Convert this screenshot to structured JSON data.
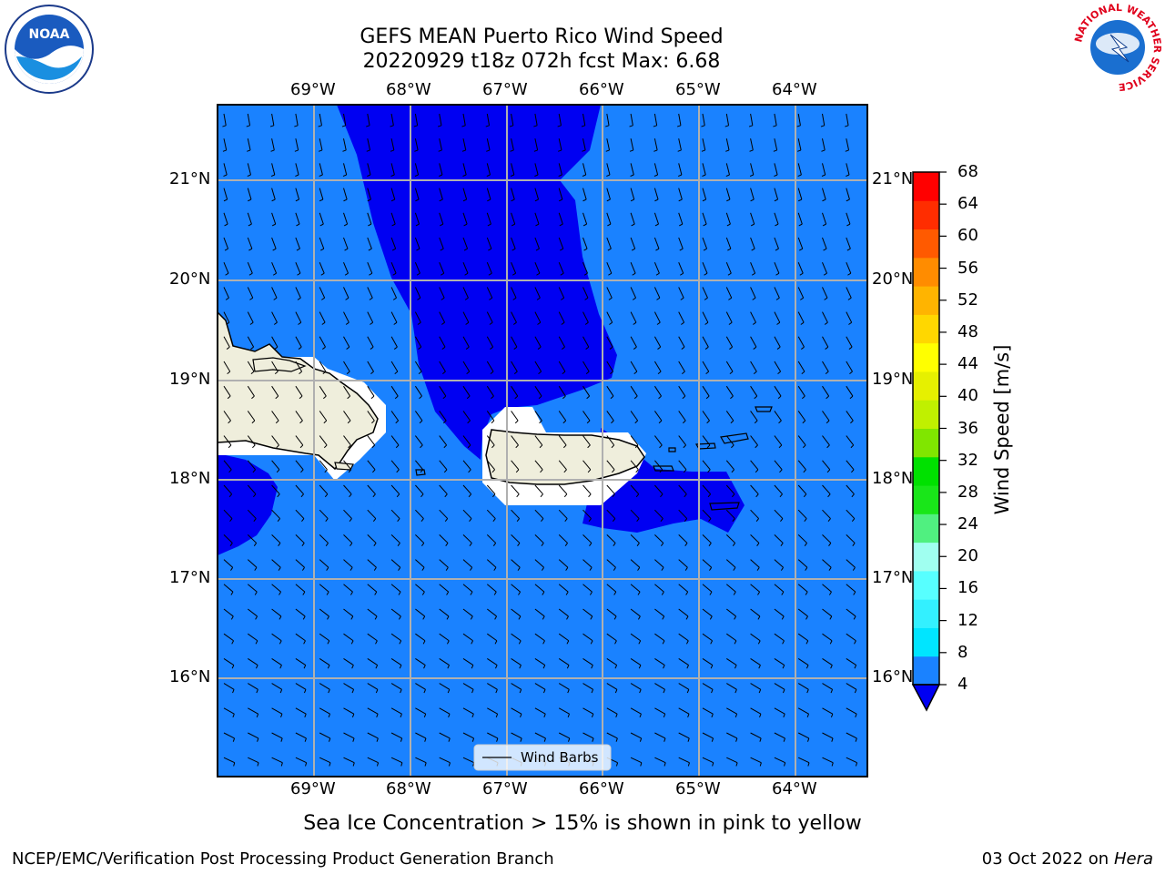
{
  "header": {
    "title_line1": "GEFS MEAN Puerto Rico Wind Speed",
    "title_line2": "20220929 t18z 072h fcst   Max: 6.68"
  },
  "logos": {
    "noaa_text": "NOAA",
    "nws_ring_text": "NATIONAL WEATHER SERVICE"
  },
  "map": {
    "lon_labels": [
      "69°W",
      "68°W",
      "67°W",
      "66°W",
      "65°W",
      "64°W"
    ],
    "lat_labels": [
      "21°N",
      "20°N",
      "19°N",
      "18°N",
      "17°N",
      "16°N"
    ],
    "legend_label": "Wind Barbs",
    "colors": {
      "ocean": "#1a82ff",
      "dark": "#0000f2",
      "land": "#efeedc",
      "white": "#ffffff",
      "grid": "#b0b0b0"
    }
  },
  "colorbar": {
    "label": "Wind Speed [m/s]",
    "ticks": [
      "68",
      "64",
      "60",
      "56",
      "52",
      "48",
      "44",
      "40",
      "36",
      "32",
      "28",
      "24",
      "20",
      "16",
      "12",
      "8",
      "4"
    ],
    "colors": [
      "#0000f2",
      "#1a82ff",
      "#00e5ff",
      "#33f0ff",
      "#57ffff",
      "#a0fff0",
      "#50f080",
      "#19e619",
      "#00e100",
      "#80e600",
      "#c0f000",
      "#e6f000",
      "#ffff00",
      "#ffd700",
      "#ffb400",
      "#ff8c00",
      "#ff5a00",
      "#ff2d00",
      "#ff0000"
    ]
  },
  "footer": {
    "subtitle": "Sea Ice Concentration > 15% is shown in pink to yellow",
    "credit": "NCEP/EMC/Verification Post Processing Product Generation Branch",
    "date": "03 Oct 2022 on",
    "machine": "Hera"
  }
}
